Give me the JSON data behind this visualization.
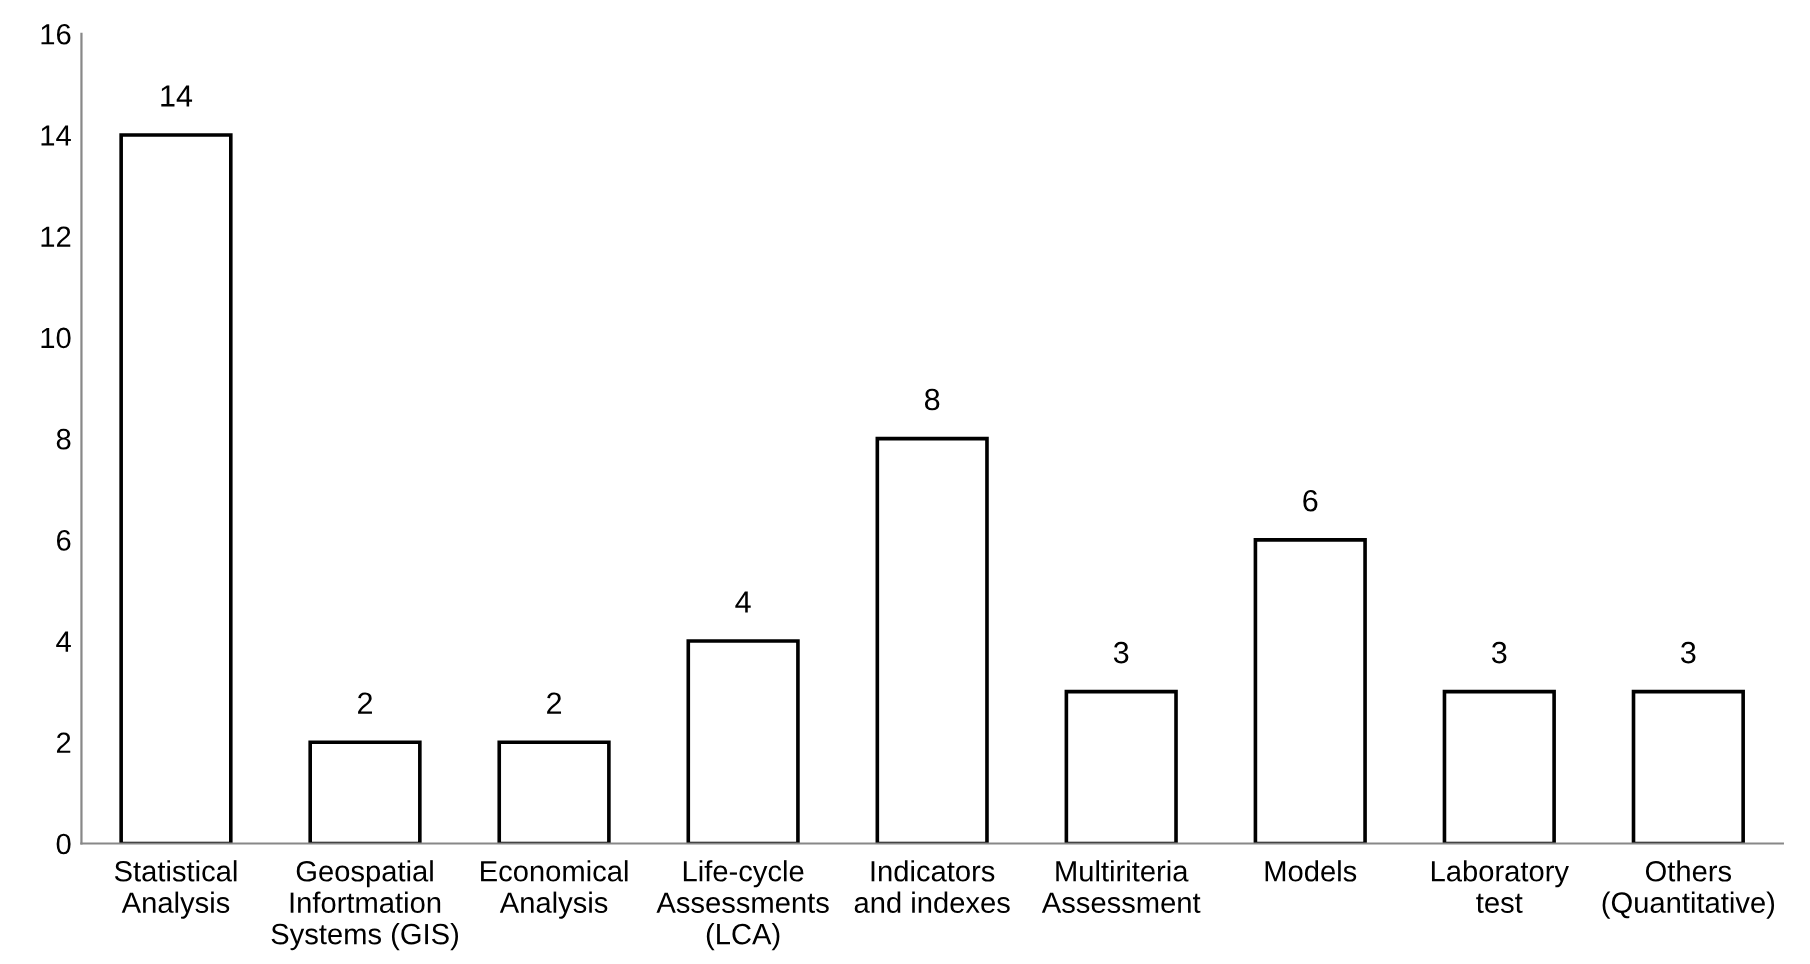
{
  "chart_data": {
    "type": "bar",
    "categories": [
      "Statistical\nAnalysis",
      "Geospatial\nInfortmation\nSystems (GIS)",
      "Economical\nAnalysis",
      "Life-cycle\nAssessments\n(LCA)",
      "Indicators\nand indexes",
      "Multiriteria\nAssessment",
      "Models",
      "Laboratory\ntest",
      "Others\n(Quantitative)"
    ],
    "values": [
      14,
      2,
      2,
      4,
      8,
      3,
      6,
      3,
      3
    ],
    "color": "#ffffff",
    "ylim": [
      0,
      16
    ],
    "yticks": [
      0,
      2,
      4,
      6,
      8,
      10,
      12,
      14,
      16
    ],
    "data_labels": true,
    "grid": false,
    "legend": false
  }
}
